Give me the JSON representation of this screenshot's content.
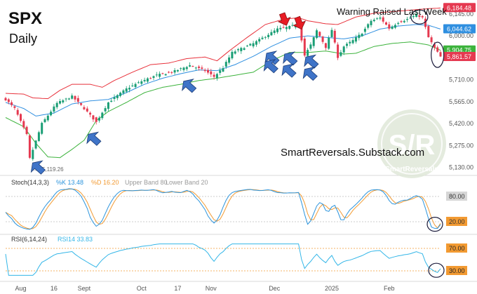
{
  "header": {
    "symbol": "SPX",
    "interval": "Daily"
  },
  "annotations": {
    "warning": "Warning Raised Last Week",
    "watermark_text": "SmartReversals.Substack.com",
    "logo_big": "S/R",
    "logo_small": "SmartReversals",
    "low_marker": "5,119.26"
  },
  "colors": {
    "candle_up": "#1a9e75",
    "candle_down": "#e53950",
    "bb_upper": "#e8303a",
    "bb_mid": "#2f8fe0",
    "bb_lower": "#3cb33c",
    "stoch_k": "#2a93dc",
    "stoch_d": "#f29a32",
    "rsi": "#33b6e8",
    "arrow_blue": "#3f74c8",
    "arrow_red": "#e81c24"
  },
  "chart_data": [
    {
      "type": "candlestick",
      "title": "SPX",
      "subtitle": "Daily",
      "y_ticks": [
        5130,
        5275,
        5420,
        5565,
        5710,
        5855,
        6000,
        6145
      ],
      "y_tick_labels": [
        "5,130.00",
        "5,275.00",
        "5,420.00",
        "5,565.00",
        "5,710.00",
        "5,855.00",
        "6,000.00",
        "6,145.00"
      ],
      "ylim": [
        5110,
        6200
      ],
      "x_tick_labels": [
        "Aug",
        "16",
        "Sept",
        "Oct",
        "17",
        "Nov",
        "Dec",
        "2025",
        "Feb"
      ],
      "x_tick_index": [
        5,
        16,
        26,
        45,
        57,
        68,
        89,
        108,
        127
      ],
      "price_tags": [
        {
          "label": "6,184.48",
          "value": 6184.48,
          "color": "#e53950"
        },
        {
          "label": "6,044.62",
          "value": 6044.62,
          "color": "#2f8fe0"
        },
        {
          "label": "5,904.75",
          "value": 5904.75,
          "color": "#3cb33c"
        },
        {
          "label": "5,861.57",
          "value": 5861.57,
          "color": "#e53950"
        }
      ],
      "low_marker_value": 5119.26,
      "series_keypoints": {
        "close": [
          [
            0,
            5580
          ],
          [
            3,
            5520
          ],
          [
            7,
            5346
          ],
          [
            8,
            5190
          ],
          [
            12,
            5420
          ],
          [
            17,
            5555
          ],
          [
            22,
            5600
          ],
          [
            26,
            5520
          ],
          [
            30,
            5430
          ],
          [
            34,
            5560
          ],
          [
            40,
            5650
          ],
          [
            45,
            5700
          ],
          [
            50,
            5740
          ],
          [
            55,
            5760
          ],
          [
            61,
            5805
          ],
          [
            66,
            5770
          ],
          [
            69,
            5730
          ],
          [
            72,
            5790
          ],
          [
            75,
            5890
          ],
          [
            82,
            5950
          ],
          [
            90,
            6045
          ],
          [
            94,
            6060
          ],
          [
            97,
            6080
          ],
          [
            99,
            5870
          ],
          [
            101,
            5940
          ],
          [
            103,
            6035
          ],
          [
            106,
            5925
          ],
          [
            108,
            6040
          ],
          [
            110,
            5860
          ],
          [
            112,
            5930
          ],
          [
            115,
            5970
          ],
          [
            118,
            6020
          ],
          [
            121,
            6100
          ],
          [
            124,
            6120
          ],
          [
            127,
            6050
          ],
          [
            130,
            6090
          ],
          [
            133,
            6110
          ],
          [
            136,
            6140
          ],
          [
            138,
            6120
          ],
          [
            140,
            5990
          ],
          [
            142,
            5920
          ],
          [
            144,
            5862
          ]
        ],
        "bb_upper": [
          [
            0,
            5620
          ],
          [
            6,
            5615
          ],
          [
            9,
            5590
          ],
          [
            14,
            5585
          ],
          [
            18,
            5640
          ],
          [
            22,
            5680
          ],
          [
            28,
            5680
          ],
          [
            32,
            5660
          ],
          [
            36,
            5705
          ],
          [
            42,
            5760
          ],
          [
            48,
            5810
          ],
          [
            54,
            5820
          ],
          [
            60,
            5850
          ],
          [
            66,
            5860
          ],
          [
            70,
            5835
          ],
          [
            74,
            5900
          ],
          [
            80,
            5990
          ],
          [
            86,
            6075
          ],
          [
            92,
            6110
          ],
          [
            97,
            6120
          ],
          [
            100,
            6100
          ],
          [
            106,
            6080
          ],
          [
            110,
            6075
          ],
          [
            116,
            6125
          ],
          [
            122,
            6150
          ],
          [
            128,
            6160
          ],
          [
            134,
            6170
          ],
          [
            140,
            6180
          ],
          [
            144,
            6184
          ]
        ],
        "bb_mid": [
          [
            0,
            5560
          ],
          [
            6,
            5520
          ],
          [
            10,
            5470
          ],
          [
            16,
            5490
          ],
          [
            22,
            5550
          ],
          [
            28,
            5570
          ],
          [
            34,
            5580
          ],
          [
            40,
            5625
          ],
          [
            46,
            5680
          ],
          [
            52,
            5720
          ],
          [
            58,
            5750
          ],
          [
            64,
            5775
          ],
          [
            70,
            5770
          ],
          [
            76,
            5810
          ],
          [
            82,
            5865
          ],
          [
            88,
            5930
          ],
          [
            94,
            5985
          ],
          [
            100,
            6000
          ],
          [
            106,
            5990
          ],
          [
            112,
            5980
          ],
          [
            118,
            6000
          ],
          [
            124,
            6045
          ],
          [
            130,
            6065
          ],
          [
            136,
            6075
          ],
          [
            140,
            6070
          ],
          [
            144,
            6045
          ]
        ],
        "bb_lower": [
          [
            0,
            5460
          ],
          [
            6,
            5400
          ],
          [
            10,
            5290
          ],
          [
            14,
            5200
          ],
          [
            18,
            5195
          ],
          [
            22,
            5250
          ],
          [
            26,
            5310
          ],
          [
            30,
            5440
          ],
          [
            34,
            5500
          ],
          [
            40,
            5560
          ],
          [
            46,
            5625
          ],
          [
            52,
            5660
          ],
          [
            58,
            5680
          ],
          [
            64,
            5705
          ],
          [
            70,
            5720
          ],
          [
            76,
            5740
          ],
          [
            82,
            5760
          ],
          [
            88,
            5835
          ],
          [
            94,
            5890
          ],
          [
            100,
            5890
          ],
          [
            106,
            5900
          ],
          [
            112,
            5880
          ],
          [
            116,
            5885
          ],
          [
            122,
            5930
          ],
          [
            128,
            5950
          ],
          [
            134,
            5960
          ],
          [
            140,
            5940
          ],
          [
            144,
            5905
          ]
        ]
      }
    },
    {
      "type": "line",
      "title": "Stoch(14,3,3)",
      "series": [
        {
          "name": "%K",
          "last": 13.48,
          "color": "#2a93dc"
        },
        {
          "name": "%D",
          "last": 16.2,
          "color": "#f29a32"
        },
        {
          "name": "Upper Band",
          "value": 80
        },
        {
          "name": "Lower Band",
          "value": 20
        }
      ],
      "ylim": [
        0,
        100
      ],
      "y_tick_labels": [
        "80.00",
        "20.00"
      ],
      "legend_labels": {
        "k": "%K 13.48",
        "d": "%D 16.20",
        "upper": "Upper Band 80",
        "lower": "Lower Band 20"
      }
    },
    {
      "type": "line",
      "title": "RSI(6,14,24)",
      "series": [
        {
          "name": "RSI14",
          "last": 33.83,
          "color": "#33b6e8"
        }
      ],
      "ylim": [
        20,
        80
      ],
      "bands": [
        70,
        30
      ],
      "y_tick_labels": [
        "70.00",
        "30.00"
      ],
      "legend_label": "RSI14 33.83"
    }
  ]
}
